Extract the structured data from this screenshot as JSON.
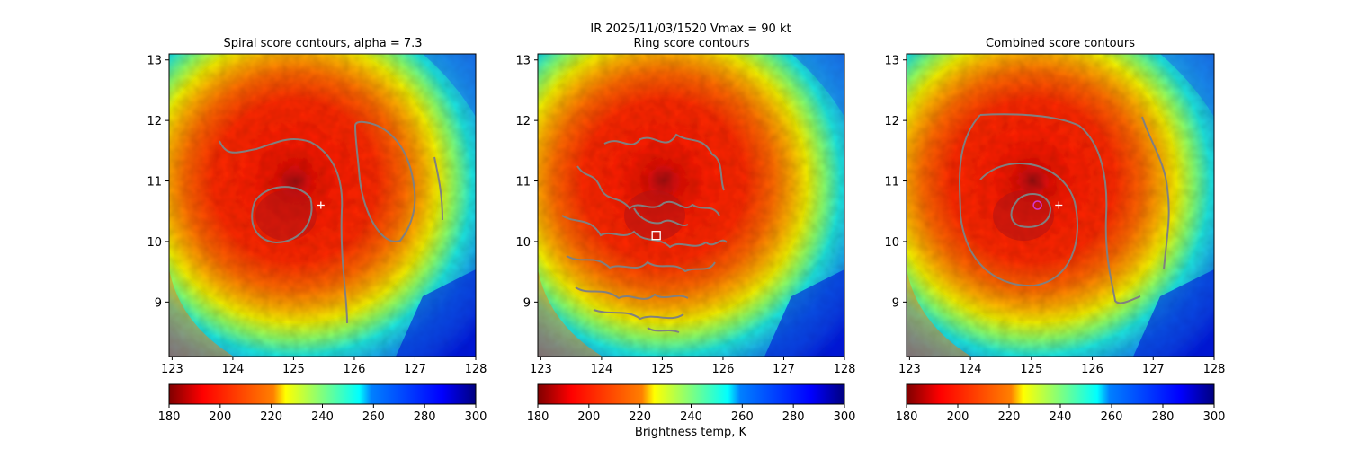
{
  "figure": {
    "suptitle": "IR  2025/11/03/1520    Vmax = 90 kt",
    "colorbar_label": "Brightness temp, K"
  },
  "chart_data": [
    {
      "type": "heatmap",
      "title": "Spiral score contours, alpha =  7.3",
      "xlim": [
        122.95,
        128.0
      ],
      "ylim": [
        8.1,
        13.1
      ],
      "xticks": [
        "123",
        "124",
        "125",
        "126",
        "127",
        "128"
      ],
      "yticks": [
        "9",
        "10",
        "11",
        "12",
        "13"
      ],
      "markers": [
        {
          "kind": "plus",
          "x": 125.45,
          "y": 10.6,
          "color": "#ffffff"
        }
      ],
      "colorbar": {
        "min": 180,
        "max": 300,
        "ticks": [
          "180",
          "200",
          "220",
          "240",
          "260",
          "280",
          "300"
        ],
        "colormap": "jet_r"
      }
    },
    {
      "type": "heatmap",
      "title": "Ring score contours",
      "xlim": [
        122.95,
        128.0
      ],
      "ylim": [
        8.1,
        13.1
      ],
      "xticks": [
        "123",
        "124",
        "125",
        "126",
        "127",
        "128"
      ],
      "yticks": [
        "9",
        "10",
        "11",
        "12",
        "13"
      ],
      "markers": [
        {
          "kind": "square",
          "x": 124.9,
          "y": 10.1,
          "color": "#ffffff"
        }
      ],
      "colorbar": {
        "min": 180,
        "max": 300,
        "ticks": [
          "180",
          "200",
          "220",
          "240",
          "260",
          "280",
          "300"
        ],
        "colormap": "jet_r"
      }
    },
    {
      "type": "heatmap",
      "title": "Combined score contours",
      "xlim": [
        122.95,
        128.0
      ],
      "ylim": [
        8.1,
        13.1
      ],
      "xticks": [
        "123",
        "124",
        "125",
        "126",
        "127",
        "128"
      ],
      "yticks": [
        "9",
        "10",
        "11",
        "12",
        "13"
      ],
      "markers": [
        {
          "kind": "circle",
          "x": 125.1,
          "y": 10.6,
          "color": "#d13ad1"
        },
        {
          "kind": "plus",
          "x": 125.45,
          "y": 10.6,
          "color": "#ffffff"
        }
      ],
      "colorbar": {
        "min": 180,
        "max": 300,
        "ticks": [
          "180",
          "200",
          "220",
          "240",
          "260",
          "280",
          "300"
        ],
        "colormap": "jet_r"
      }
    }
  ],
  "colors": {
    "contour": "#808080",
    "eye": "#8b1a1a",
    "core": "#ff1e00",
    "band": "#ff7a00",
    "yellow": "#f4f000",
    "cyan": "#20e8e0",
    "blue": "#1a6fe8",
    "deep_blue": "#0010d0"
  }
}
